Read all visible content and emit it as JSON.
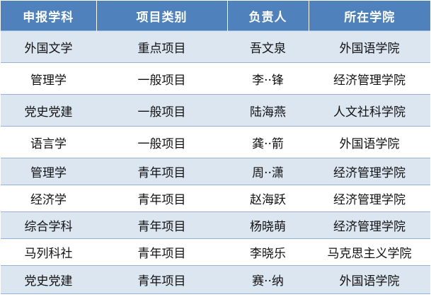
{
  "table": {
    "columns": [
      "申报学科",
      "项目类别",
      "负责人",
      "所在学院"
    ],
    "rows": [
      [
        "外国文学",
        "重点项目",
        "吾文泉",
        "外国语学院"
      ],
      [
        "管理学",
        "一般项目",
        "李··锋",
        "经济管理学院"
      ],
      [
        "党史党建",
        "一般项目",
        "陆海燕",
        "人文社科学院"
      ],
      [
        "语言学",
        "一般项目",
        "龚··箭",
        "外国语学院"
      ],
      [
        "管理学",
        "青年项目",
        "周··潇",
        "经济管理学院"
      ],
      [
        "经济学",
        "青年项目",
        "赵海跃",
        "经济管理学院"
      ],
      [
        "综合学科",
        "青年项目",
        "杨晓萌",
        "经济管理学院"
      ],
      [
        "马列科社",
        "青年项目",
        "李晓乐",
        "马克思主义学院"
      ],
      [
        "党史党建",
        "青年项目",
        "赛··纳",
        "外国语学院"
      ]
    ]
  }
}
